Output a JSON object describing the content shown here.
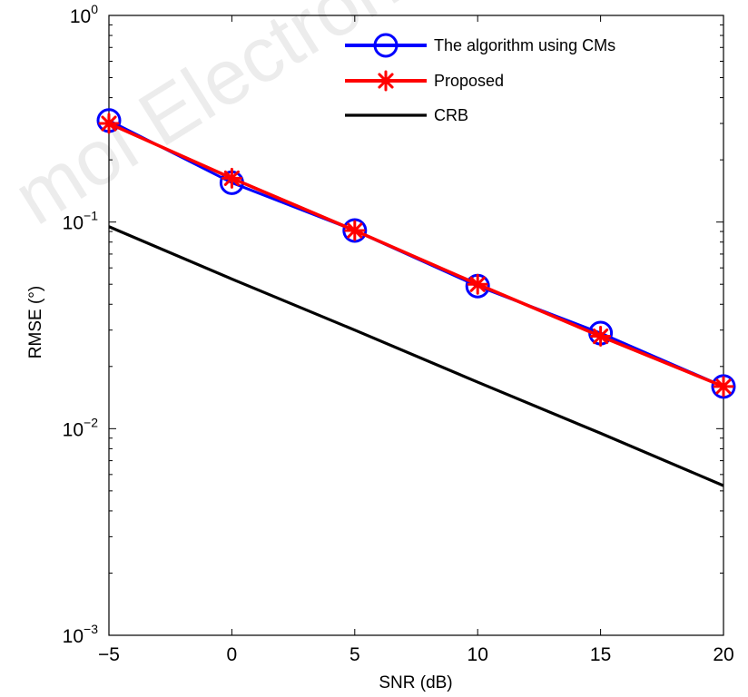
{
  "chart_data": {
    "type": "line",
    "xlabel": "SNR (dB)",
    "ylabel": "RMSE (°)",
    "x": [
      -5,
      0,
      5,
      10,
      15,
      20
    ],
    "xlim": [
      -5,
      20
    ],
    "ylim": [
      0.001,
      1
    ],
    "yscale": "log",
    "xticks": [
      "−5",
      "0",
      "5",
      "10",
      "15",
      "20"
    ],
    "yticks": [
      {
        "base": "10",
        "exp": "0"
      },
      {
        "base": "10",
        "exp": "−1"
      },
      {
        "base": "10",
        "exp": "−2"
      },
      {
        "base": "10",
        "exp": "−3"
      }
    ],
    "legend_position": "top-right",
    "grid": false,
    "series": [
      {
        "name": "The algorithm using CMs",
        "color": "#0000ff",
        "marker": "circle",
        "values": [
          0.31,
          0.155,
          0.091,
          0.049,
          0.029,
          0.016
        ]
      },
      {
        "name": "Proposed",
        "color": "#ff0000",
        "marker": "asterisk",
        "values": [
          0.3,
          0.163,
          0.091,
          0.05,
          0.028,
          0.016
        ]
      },
      {
        "name": "CRB",
        "color": "#000000",
        "marker": "none",
        "values": [
          0.095,
          0.053,
          0.03,
          0.0168,
          0.0095,
          0.0053
        ]
      }
    ],
    "watermark": "mol Electron"
  }
}
